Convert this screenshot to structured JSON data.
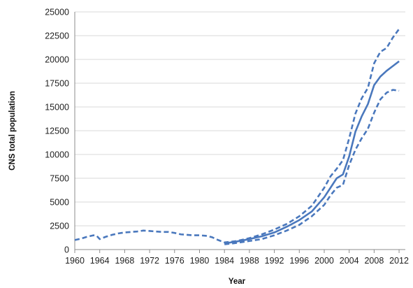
{
  "chart_data": {
    "type": "line",
    "xlabel": "Year",
    "ylabel": "CNS total population",
    "ylim": [
      0,
      25000
    ],
    "xlim": [
      1960,
      2013
    ],
    "yticks": [
      0,
      2500,
      5000,
      7500,
      10000,
      12500,
      15000,
      17500,
      20000,
      22500,
      25000
    ],
    "ytick_labels": [
      "0",
      "2500",
      "5000",
      "7500",
      "10000",
      "12500",
      "15000",
      "17500",
      "20000",
      "22500",
      "25000"
    ],
    "xticks": [
      1960,
      1964,
      1968,
      1972,
      1976,
      1980,
      1984,
      1988,
      1992,
      1996,
      2000,
      2004,
      2008,
      2012
    ],
    "xtick_labels": [
      "1960",
      "1964",
      "1968",
      "1972",
      "1976",
      "1980",
      "1984",
      "1988",
      "1992",
      "1996",
      "2000",
      "2004",
      "2008",
      "2012"
    ],
    "grid": "horizontal",
    "legend": "none",
    "colors": {
      "series": "#4a78bd",
      "grid": "#d9d9d9",
      "axis": "#8c8c8c"
    },
    "series": [
      {
        "style": "solid",
        "x": [
          1984,
          1986,
          1988,
          1990,
          1992,
          1994,
          1996,
          1998,
          2000,
          2001,
          2002,
          2003,
          2004,
          2005,
          2006,
          2007,
          2008,
          2009,
          2010,
          2011,
          2012
        ],
        "values": [
          650,
          850,
          1100,
          1400,
          1800,
          2400,
          3100,
          4000,
          5500,
          6500,
          7500,
          7900,
          9800,
          12400,
          14000,
          15300,
          17300,
          18200,
          18800,
          19300,
          19800
        ]
      },
      {
        "style": "dashed",
        "x": [
          1960,
          1961,
          1962,
          1963,
          1963.5,
          1964,
          1965,
          1966,
          1967,
          1968,
          1969,
          1970,
          1971,
          1972,
          1973,
          1974,
          1975,
          1976,
          1977,
          1978,
          1979,
          1980,
          1981,
          1982,
          1983,
          1984,
          1986,
          1988,
          1990,
          1992,
          1994,
          1996,
          1998,
          2000,
          2001,
          2002,
          2003,
          2004,
          2005,
          2006,
          2007,
          2008,
          2009,
          2010,
          2011,
          2012
        ],
        "values": [
          1000,
          1150,
          1350,
          1500,
          1450,
          1100,
          1350,
          1550,
          1700,
          1800,
          1850,
          1900,
          2000,
          1950,
          1900,
          1850,
          1850,
          1750,
          1600,
          1550,
          1500,
          1500,
          1450,
          1300,
          1000,
          750,
          900,
          1200,
          1600,
          2100,
          2700,
          3500,
          4600,
          6500,
          7700,
          8500,
          9400,
          11700,
          14300,
          15900,
          17000,
          19600,
          20800,
          21200,
          22300,
          23200
        ]
      },
      {
        "style": "dashed",
        "x": [
          1984,
          1986,
          1988,
          1990,
          1992,
          1994,
          1996,
          1998,
          2000,
          2001,
          2002,
          2003,
          2004,
          2005,
          2006,
          2007,
          2008,
          2009,
          2010,
          2011,
          2012
        ],
        "values": [
          550,
          700,
          900,
          1100,
          1500,
          2000,
          2600,
          3500,
          4700,
          5700,
          6500,
          6800,
          8900,
          10500,
          11700,
          12700,
          14400,
          15800,
          16500,
          16800,
          16700
        ]
      }
    ]
  }
}
